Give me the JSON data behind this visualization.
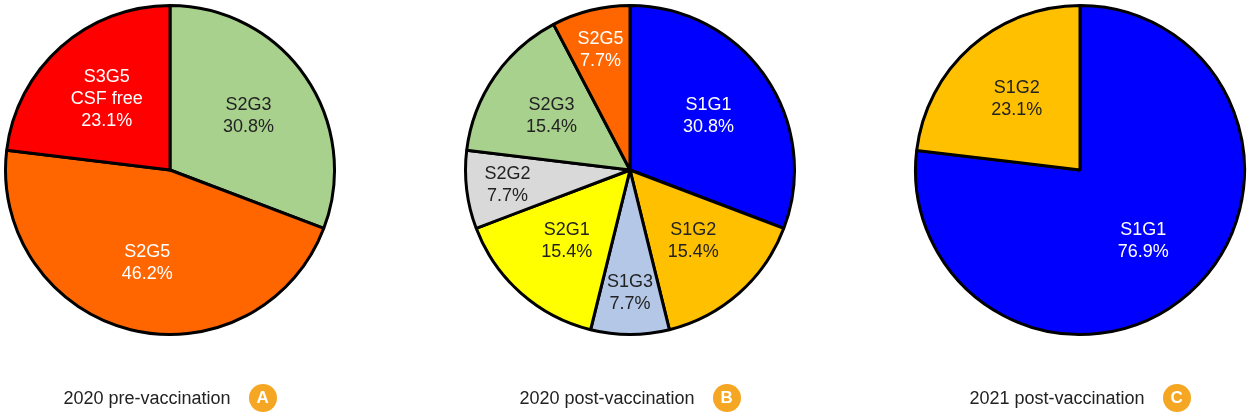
{
  "chart_data": [
    {
      "type": "pie",
      "title": "2020 pre-vaccination",
      "annotations": [
        "A"
      ],
      "categories": [
        "S2G3",
        "S2G5",
        "S3G5 CSF free"
      ],
      "values": [
        30.8,
        46.2,
        23.1
      ],
      "value_labels": [
        "30.8%",
        "46.2%",
        "23.1%"
      ],
      "colors": [
        "#a9d18e",
        "#ff6600",
        "#ff0000"
      ]
    },
    {
      "type": "pie",
      "title": "2020 post-vaccination",
      "annotations": [
        "B"
      ],
      "categories": [
        "S1G1",
        "S1G2",
        "S1G3",
        "S2G1",
        "S2G2",
        "S2G3",
        "S2G5"
      ],
      "values": [
        30.8,
        15.4,
        7.7,
        15.4,
        7.7,
        15.4,
        7.7
      ],
      "value_labels": [
        "30.8%",
        "15.4%",
        "7.7%",
        "15.4%",
        "7.7%",
        "15.4%",
        "7.7%"
      ],
      "colors": [
        "#0000ff",
        "#ffc000",
        "#b4c7e7",
        "#ffff00",
        "#d9d9d9",
        "#a9d18e",
        "#ff6600"
      ]
    },
    {
      "type": "pie",
      "title": "2021 post-vaccination",
      "annotations": [
        "C"
      ],
      "categories": [
        "S1G1",
        "S1G2"
      ],
      "values": [
        76.9,
        23.1
      ],
      "value_labels": [
        "76.9%",
        "23.1%"
      ],
      "colors": [
        "#0000ff",
        "#ffc000"
      ]
    }
  ]
}
